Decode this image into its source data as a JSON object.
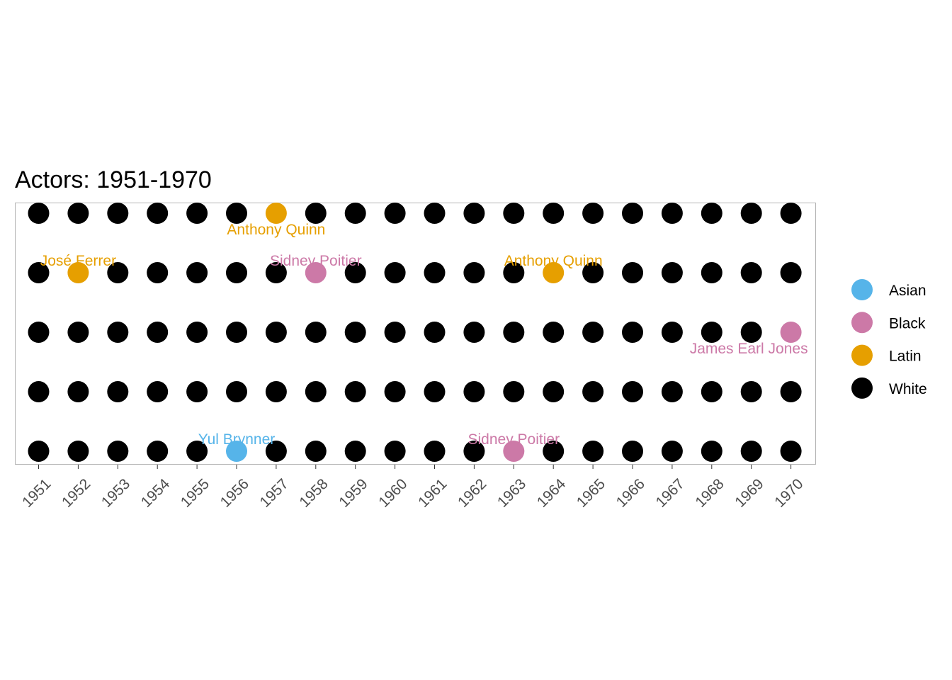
{
  "chart_data": {
    "type": "scatter",
    "title": "Actors: 1951-1970",
    "xlabel": "",
    "ylabel": "",
    "x": [
      "1951",
      "1952",
      "1953",
      "1954",
      "1955",
      "1956",
      "1957",
      "1958",
      "1959",
      "1960",
      "1961",
      "1962",
      "1963",
      "1964",
      "1965",
      "1966",
      "1967",
      "1968",
      "1969",
      "1970"
    ],
    "rows": 5,
    "grid": false,
    "legend_position": "right",
    "colors": {
      "Asian": "#56B4E9",
      "Black": "#CC79A7",
      "Latin": "#E69F00",
      "White": "#000000"
    },
    "legend": [
      "Asian",
      "Black",
      "Latin",
      "White"
    ],
    "default_group": "White",
    "highlights": [
      {
        "year": "1957",
        "row": 5,
        "group": "Latin",
        "label": "Anthony Quinn",
        "label_side": "below"
      },
      {
        "year": "1952",
        "row": 4,
        "group": "Latin",
        "label": "José Ferrer",
        "label_side": "above"
      },
      {
        "year": "1958",
        "row": 4,
        "group": "Black",
        "label": "Sidney Poitier",
        "label_side": "above"
      },
      {
        "year": "1964",
        "row": 4,
        "group": "Latin",
        "label": "Anthony Quinn",
        "label_side": "above"
      },
      {
        "year": "1970",
        "row": 3,
        "group": "Black",
        "label": "James Earl Jones",
        "label_side": "below-left"
      },
      {
        "year": "1956",
        "row": 1,
        "group": "Asian",
        "label": "Yul Brynner",
        "label_side": "above"
      },
      {
        "year": "1963",
        "row": 1,
        "group": "Black",
        "label": "Sidney Poitier",
        "label_side": "above"
      }
    ]
  }
}
